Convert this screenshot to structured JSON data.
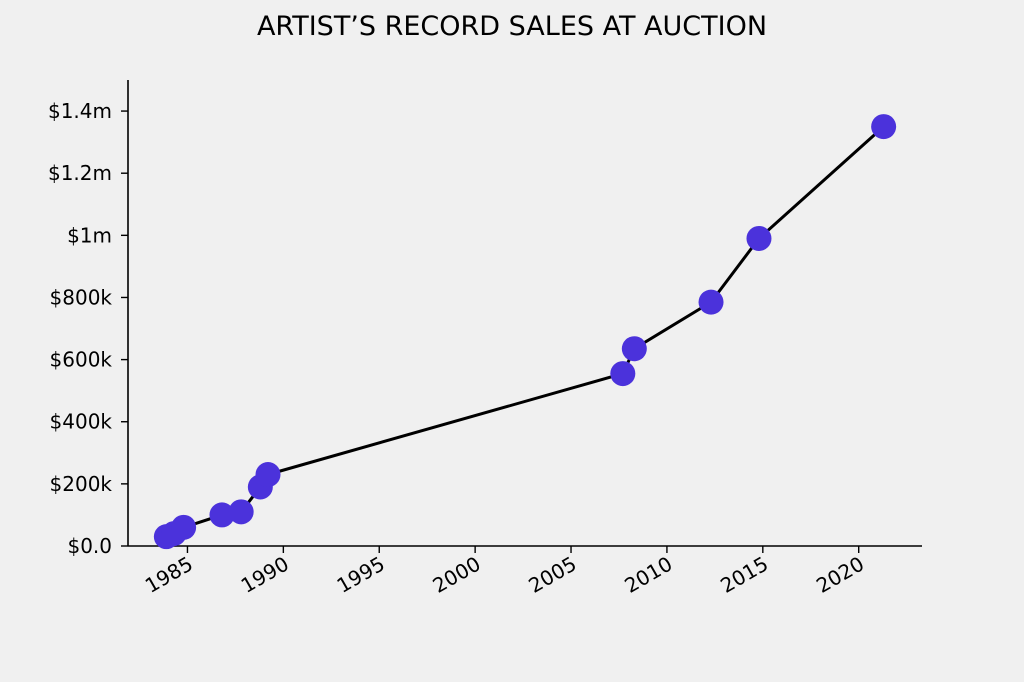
{
  "chart_data": {
    "type": "line",
    "title": "ARTIST’S RECORD SALES AT AUCTION",
    "xlabel": "",
    "ylabel": "",
    "xlim": [
      1981.9,
      2023.3
    ],
    "ylim": [
      0,
      1.5
    ],
    "x_ticks": [
      {
        "value": 1985,
        "label": "1985"
      },
      {
        "value": 1990,
        "label": "1990"
      },
      {
        "value": 1995,
        "label": "1995"
      },
      {
        "value": 2000,
        "label": "2000"
      },
      {
        "value": 2005,
        "label": "2005"
      },
      {
        "value": 2010,
        "label": "2010"
      },
      {
        "value": 2015,
        "label": "2015"
      },
      {
        "value": 2020,
        "label": "2020"
      }
    ],
    "y_ticks": [
      {
        "value": 0,
        "label": "$0.0"
      },
      {
        "value": 0.2,
        "label": "$200k"
      },
      {
        "value": 0.4,
        "label": "$400k"
      },
      {
        "value": 0.6,
        "label": "$600k"
      },
      {
        "value": 0.8,
        "label": "$800k"
      },
      {
        "value": 1.0,
        "label": "$1m"
      },
      {
        "value": 1.2,
        "label": "$1.2m"
      },
      {
        "value": 1.4,
        "label": "$1.4m"
      }
    ],
    "series": [
      {
        "x": [
          1983.9,
          1984.3,
          1984.8,
          1986.8,
          1987.8,
          1988.8,
          1989.2,
          2007.7,
          2008.3,
          2012.3,
          2014.8,
          2021.3
        ],
        "y": [
          0.03,
          0.04,
          0.06,
          0.1,
          0.11,
          0.19,
          0.23,
          0.555,
          0.635,
          0.785,
          0.99,
          1.35
        ]
      }
    ],
    "colors": {
      "marker": "#4b32db",
      "line": "#000000",
      "background": "#f0f0f0"
    },
    "grid": false,
    "spines": "left-bottom"
  }
}
